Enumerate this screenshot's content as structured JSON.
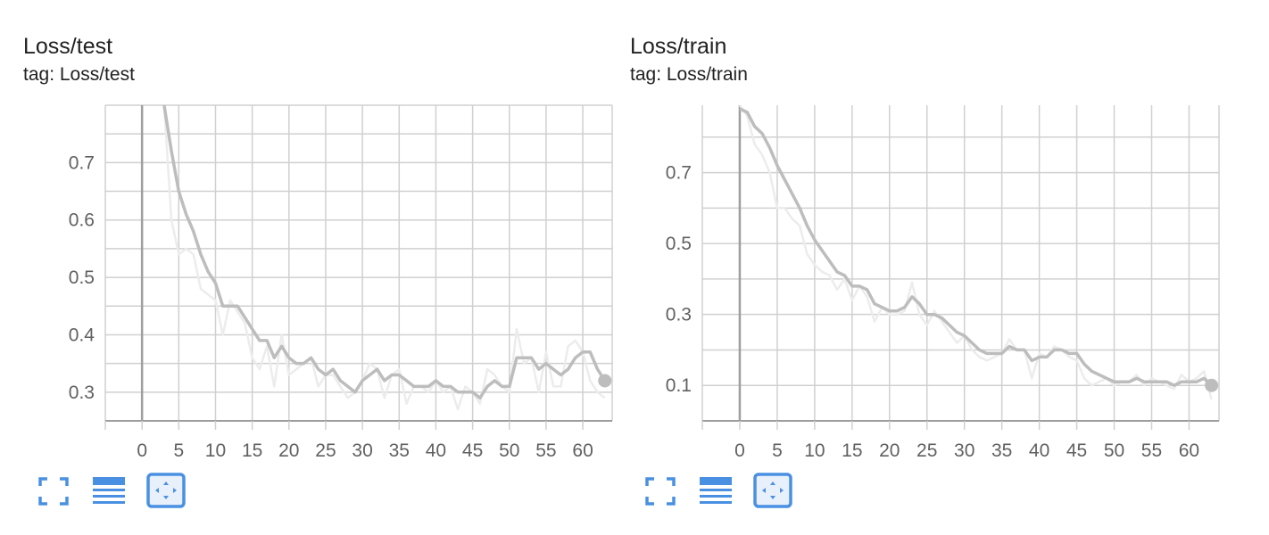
{
  "colors": {
    "grid": "#d0d0d0",
    "axis": "#9e9e9e",
    "zero_line": "#9e9e9e",
    "smoothed": "#bdbdbd",
    "raw": "#ececec",
    "toolbar_icon": "#4a90e2",
    "toolbar_active_bg": "#e8f0fb"
  },
  "cards": [
    {
      "title": "Loss/test",
      "tag": "tag: Loss/test",
      "toolbar": {
        "fullscreen_icon": "fullscreen-icon",
        "data_table_icon": "data-table-icon",
        "fit_domain_icon": "fit-to-domain-icon"
      }
    },
    {
      "title": "Loss/train",
      "tag": "tag: Loss/train",
      "toolbar": {
        "fullscreen_icon": "fullscreen-icon",
        "data_table_icon": "data-table-icon",
        "fit_domain_icon": "fit-to-domain-icon"
      }
    }
  ],
  "chart_data": [
    {
      "type": "line",
      "title": "Loss/test",
      "xlim": [
        -5,
        64
      ],
      "ylim": [
        0.25,
        0.8
      ],
      "x_ticks": [
        0,
        5,
        10,
        15,
        20,
        25,
        30,
        35,
        40,
        45,
        50,
        55,
        60
      ],
      "y_ticks": [
        0.3,
        0.4,
        0.5,
        0.6,
        0.7
      ],
      "y_tick_labels": [
        "0.3",
        "0.4",
        "0.5",
        "0.6",
        "0.7"
      ],
      "grid": true,
      "legend": "none",
      "x": [
        3,
        4,
        5,
        6,
        7,
        8,
        9,
        10,
        11,
        12,
        13,
        14,
        15,
        16,
        17,
        18,
        19,
        20,
        21,
        22,
        23,
        24,
        25,
        26,
        27,
        28,
        29,
        30,
        31,
        32,
        33,
        34,
        35,
        36,
        37,
        38,
        39,
        40,
        41,
        42,
        43,
        44,
        45,
        46,
        47,
        48,
        49,
        50,
        51,
        52,
        53,
        54,
        55,
        56,
        57,
        58,
        59,
        60,
        61,
        62,
        63
      ],
      "series": [
        {
          "style": "raw",
          "values": [
            0.8,
            0.6,
            0.54,
            0.55,
            0.54,
            0.48,
            0.47,
            0.46,
            0.4,
            0.46,
            0.44,
            0.42,
            0.36,
            0.34,
            0.38,
            0.31,
            0.4,
            0.33,
            0.34,
            0.35,
            0.36,
            0.31,
            0.33,
            0.33,
            0.31,
            0.29,
            0.3,
            0.32,
            0.35,
            0.34,
            0.29,
            0.33,
            0.34,
            0.28,
            0.31,
            0.31,
            0.3,
            0.32,
            0.3,
            0.31,
            0.27,
            0.31,
            0.3,
            0.28,
            0.34,
            0.33,
            0.31,
            0.3,
            0.41,
            0.35,
            0.36,
            0.3,
            0.37,
            0.31,
            0.31,
            0.38,
            0.39,
            0.37,
            0.32,
            0.3,
            0.29
          ]
        },
        {
          "style": "smoothed",
          "values": [
            0.8,
            0.72,
            0.65,
            0.61,
            0.58,
            0.54,
            0.51,
            0.49,
            0.45,
            0.45,
            0.45,
            0.43,
            0.41,
            0.39,
            0.39,
            0.36,
            0.38,
            0.36,
            0.35,
            0.35,
            0.36,
            0.34,
            0.33,
            0.34,
            0.32,
            0.31,
            0.3,
            0.32,
            0.33,
            0.34,
            0.32,
            0.33,
            0.33,
            0.32,
            0.31,
            0.31,
            0.31,
            0.32,
            0.31,
            0.31,
            0.3,
            0.3,
            0.3,
            0.29,
            0.31,
            0.32,
            0.31,
            0.31,
            0.36,
            0.36,
            0.36,
            0.34,
            0.35,
            0.34,
            0.33,
            0.34,
            0.36,
            0.37,
            0.37,
            0.34,
            0.32
          ]
        }
      ]
    },
    {
      "type": "line",
      "title": "Loss/train",
      "xlim": [
        -5,
        64
      ],
      "ylim": [
        0.0,
        0.89
      ],
      "x_ticks": [
        0,
        5,
        10,
        15,
        20,
        25,
        30,
        35,
        40,
        45,
        50,
        55,
        60
      ],
      "y_ticks": [
        0.1,
        0.3,
        0.5,
        0.7
      ],
      "y_tick_labels": [
        "0.1",
        "0.3",
        "0.5",
        "0.7"
      ],
      "grid": true,
      "legend": "none",
      "x": [
        0,
        1,
        2,
        3,
        4,
        5,
        6,
        7,
        8,
        9,
        10,
        11,
        12,
        13,
        14,
        15,
        16,
        17,
        18,
        19,
        20,
        21,
        22,
        23,
        24,
        25,
        26,
        27,
        28,
        29,
        30,
        31,
        32,
        33,
        34,
        35,
        36,
        37,
        38,
        39,
        40,
        41,
        42,
        43,
        44,
        45,
        46,
        47,
        48,
        49,
        50,
        51,
        52,
        53,
        54,
        55,
        56,
        57,
        58,
        59,
        60,
        61,
        62,
        63
      ],
      "series": [
        {
          "style": "raw",
          "values": [
            0.89,
            0.86,
            0.78,
            0.75,
            0.7,
            0.6,
            0.6,
            0.57,
            0.55,
            0.47,
            0.44,
            0.42,
            0.41,
            0.37,
            0.4,
            0.34,
            0.38,
            0.35,
            0.28,
            0.32,
            0.3,
            0.3,
            0.31,
            0.39,
            0.3,
            0.27,
            0.31,
            0.28,
            0.25,
            0.22,
            0.24,
            0.2,
            0.18,
            0.17,
            0.18,
            0.19,
            0.23,
            0.2,
            0.2,
            0.12,
            0.19,
            0.18,
            0.21,
            0.2,
            0.18,
            0.17,
            0.12,
            0.1,
            0.11,
            0.12,
            0.1,
            0.11,
            0.11,
            0.13,
            0.1,
            0.12,
            0.11,
            0.1,
            0.09,
            0.13,
            0.11,
            0.12,
            0.14,
            0.06
          ]
        },
        {
          "style": "smoothed",
          "values": [
            0.88,
            0.87,
            0.83,
            0.81,
            0.77,
            0.72,
            0.68,
            0.64,
            0.6,
            0.55,
            0.51,
            0.48,
            0.45,
            0.42,
            0.41,
            0.38,
            0.38,
            0.37,
            0.33,
            0.32,
            0.31,
            0.31,
            0.32,
            0.35,
            0.33,
            0.3,
            0.3,
            0.29,
            0.27,
            0.25,
            0.24,
            0.22,
            0.2,
            0.19,
            0.19,
            0.19,
            0.21,
            0.2,
            0.2,
            0.17,
            0.18,
            0.18,
            0.2,
            0.2,
            0.19,
            0.19,
            0.16,
            0.14,
            0.13,
            0.12,
            0.11,
            0.11,
            0.11,
            0.12,
            0.11,
            0.11,
            0.11,
            0.11,
            0.1,
            0.11,
            0.11,
            0.11,
            0.12,
            0.1
          ]
        }
      ]
    }
  ]
}
